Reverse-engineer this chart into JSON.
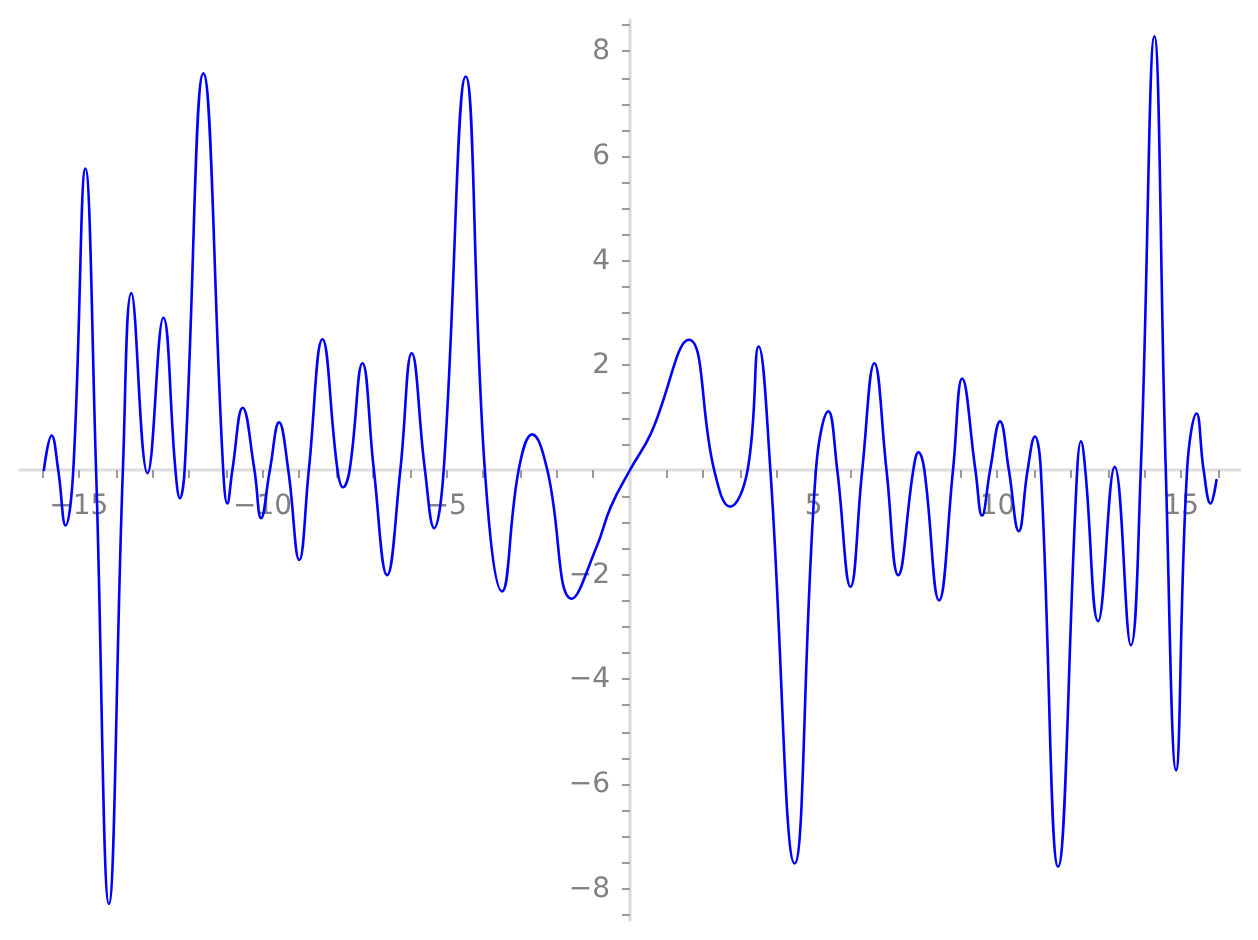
{
  "chart_data": {
    "type": "line",
    "x": [
      -15.95,
      -15.74,
      -15.56,
      -15.36,
      -15.15,
      -14.82,
      -14.53,
      -14.18,
      -13.8,
      -13.57,
      -13.13,
      -12.7,
      -12.37,
      -12.25,
      -12.12,
      -11.61,
      -11.07,
      -10.96,
      -10.82,
      -10.54,
      -10.22,
      -10.04,
      -9.8,
      -9.55,
      -9.3,
      -9.0,
      -8.74,
      -8.37,
      -7.96,
      -7.81,
      -7.63,
      -7.28,
      -6.97,
      -6.61,
      -6.25,
      -5.94,
      -5.58,
      -5.33,
      -5.07,
      -4.47,
      -3.95,
      -3.48,
      -3.03,
      -2.66,
      -2.25,
      -1.58,
      -0.91,
      -0.52,
      0,
      0.57,
      1.6,
      2.29,
      2.72,
      3.2,
      3.5,
      3.82,
      4.48,
      5.06,
      5.4,
      5.64,
      6.0,
      6.32,
      6.65,
      6.98,
      7.3,
      7.71,
      7.85,
      8.01,
      8.41,
      8.79,
      9.04,
      9.4,
      9.58,
      9.8,
      10.07,
      10.31,
      10.58,
      10.82,
      11.02,
      11.18,
      11.65,
      12.17,
      12.27,
      12.39,
      12.74,
      13.19,
      13.63,
      13.9,
      14.27,
      14.58,
      14.86,
      15.16,
      15.42,
      15.61,
      15.8,
      15.96
    ],
    "values": [
      0,
      0.66,
      0,
      -1.06,
      0,
      5.76,
      0,
      -8.29,
      0,
      3.38,
      -0.06,
      2.91,
      0,
      -0.54,
      0,
      7.58,
      0,
      -0.64,
      0,
      1.19,
      0,
      -0.92,
      0,
      0.91,
      0,
      -1.72,
      0,
      2.5,
      0,
      -0.33,
      0,
      2.04,
      0,
      -2.01,
      0,
      2.23,
      0,
      -1.11,
      0,
      7.52,
      0,
      -2.32,
      0,
      0.68,
      0,
      -2.46,
      -1.47,
      -0.7,
      0,
      0.7,
      2.49,
      0,
      -0.7,
      0,
      2.36,
      0,
      -7.52,
      0,
      1.12,
      0,
      -2.23,
      0,
      2.04,
      0,
      -2.01,
      0,
      0.34,
      0,
      -2.49,
      0,
      1.75,
      0,
      -0.87,
      0,
      0.93,
      0,
      -1.17,
      0,
      0.64,
      0,
      -7.58,
      0,
      0.55,
      0,
      -2.89,
      0.06,
      -3.35,
      0,
      8.29,
      0,
      -5.74,
      0,
      1.08,
      0,
      -0.64,
      -0.19
    ],
    "color": "#0000ff",
    "marker": "none",
    "line_style": "solid",
    "xlim": [
      -16.6,
      16.6
    ],
    "ylim": [
      -8.6,
      8.6
    ],
    "xticks": [
      {
        "value": -16,
        "label": null
      },
      {
        "value": -15,
        "label": "−15"
      },
      {
        "value": -14,
        "label": null
      },
      {
        "value": -13,
        "label": null
      },
      {
        "value": -12,
        "label": null
      },
      {
        "value": -11,
        "label": null
      },
      {
        "value": -10,
        "label": "−10"
      },
      {
        "value": -9,
        "label": null
      },
      {
        "value": -8,
        "label": null
      },
      {
        "value": -7,
        "label": null
      },
      {
        "value": -6,
        "label": null
      },
      {
        "value": -5,
        "label": "−5"
      },
      {
        "value": -4,
        "label": null
      },
      {
        "value": -3,
        "label": null
      },
      {
        "value": -2,
        "label": null
      },
      {
        "value": -1,
        "label": null
      },
      {
        "value": 1,
        "label": null
      },
      {
        "value": 2,
        "label": null
      },
      {
        "value": 3,
        "label": null
      },
      {
        "value": 4,
        "label": null
      },
      5,
      {
        "value": 6,
        "label": null
      },
      {
        "value": 7,
        "label": null
      },
      {
        "value": 8,
        "label": null
      },
      {
        "value": 9,
        "label": null
      },
      10,
      {
        "value": 11,
        "label": null
      },
      {
        "value": 12,
        "label": null
      },
      {
        "value": 13,
        "label": null
      },
      {
        "value": 14,
        "label": null
      },
      15,
      {
        "value": 16,
        "label": null
      }
    ],
    "yticks": [
      {
        "value": -8.5,
        "label": null
      },
      {
        "value": -8,
        "label": "−8"
      },
      {
        "value": -7.5,
        "label": null
      },
      {
        "value": -7,
        "label": null
      },
      {
        "value": -6.5,
        "label": null
      },
      {
        "value": -6,
        "label": "−6"
      },
      {
        "value": -5.5,
        "label": null
      },
      {
        "value": -5,
        "label": null
      },
      {
        "value": -4.5,
        "label": null
      },
      {
        "value": -4,
        "label": "−4"
      },
      {
        "value": -3.5,
        "label": null
      },
      {
        "value": -3,
        "label": null
      },
      {
        "value": -2.5,
        "label": null
      },
      {
        "value": -2,
        "label": "−2"
      },
      {
        "value": -1.5,
        "label": null
      },
      {
        "value": -1,
        "label": null
      },
      {
        "value": -0.5,
        "label": null
      },
      {
        "value": 0.5,
        "label": null
      },
      {
        "value": 1,
        "label": null
      },
      {
        "value": 1.5,
        "label": null
      },
      2,
      {
        "value": 2.5,
        "label": null
      },
      {
        "value": 3,
        "label": null
      },
      {
        "value": 3.5,
        "label": null
      },
      4,
      {
        "value": 4.5,
        "label": null
      },
      {
        "value": 5,
        "label": null
      },
      {
        "value": 5.5,
        "label": null
      },
      6,
      {
        "value": 6.5,
        "label": null
      },
      {
        "value": 7,
        "label": null
      },
      {
        "value": 7.5,
        "label": null
      },
      8,
      {
        "value": 8.5,
        "label": null
      }
    ]
  }
}
